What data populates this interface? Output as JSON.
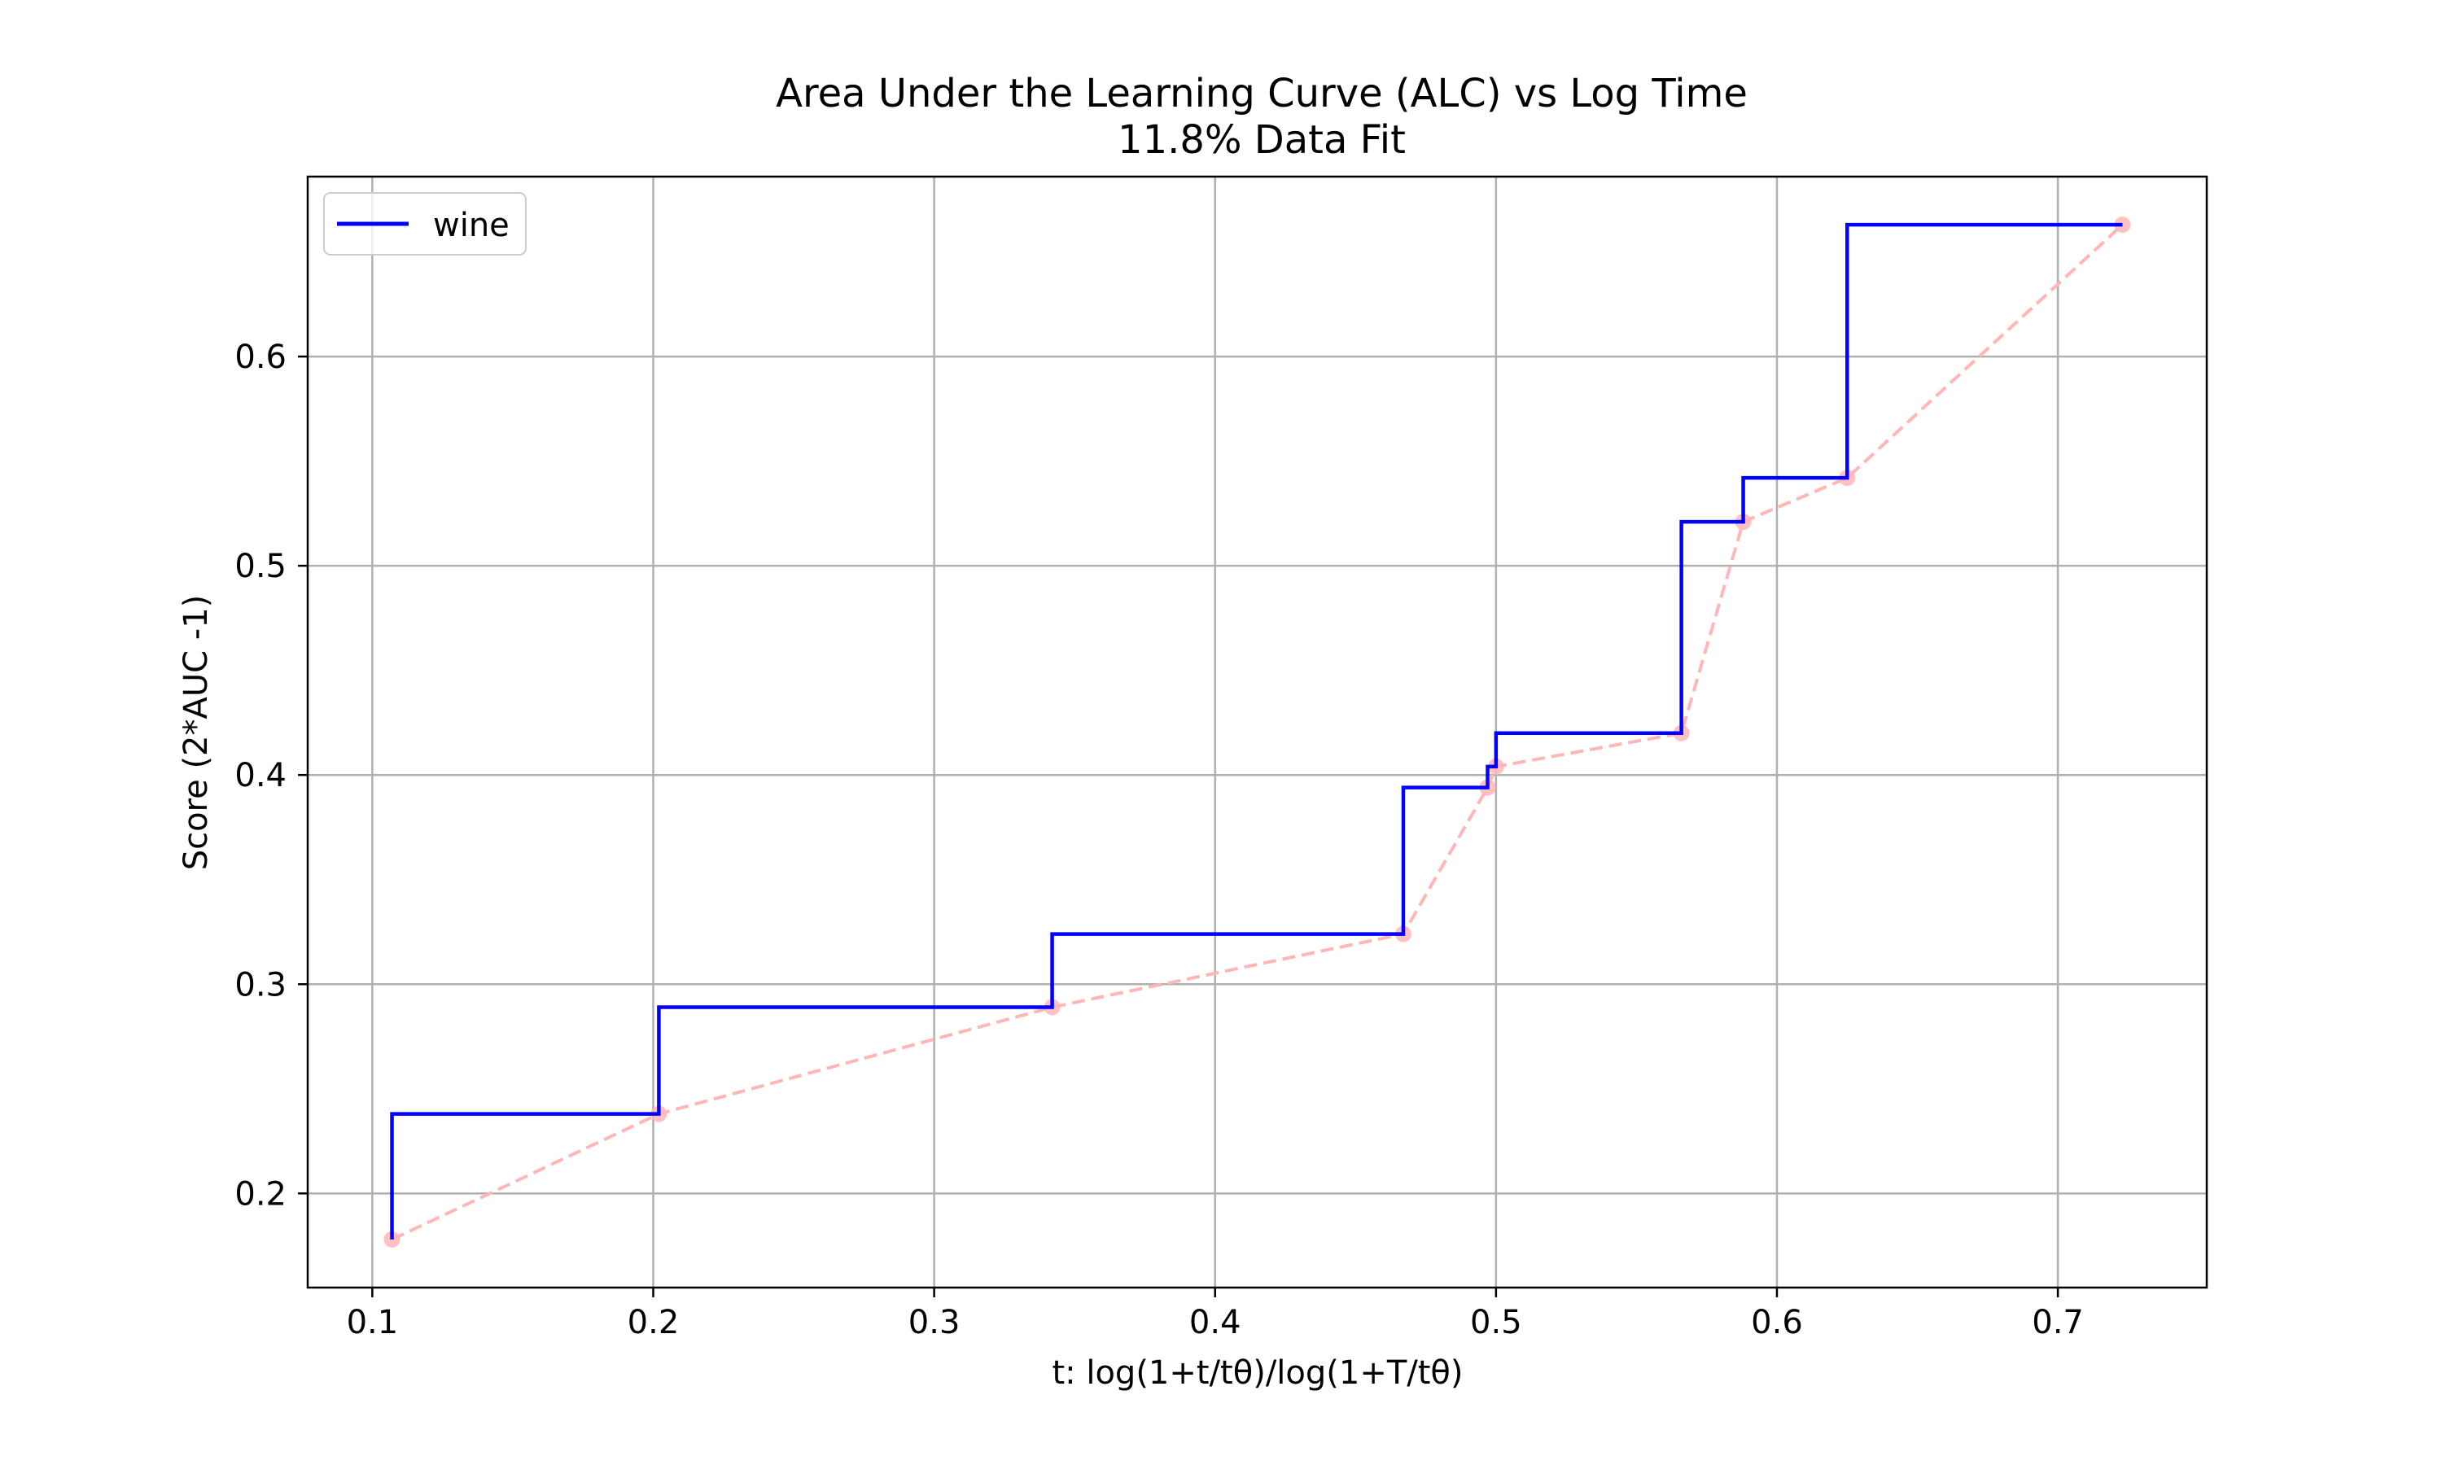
{
  "chart_data": {
    "type": "line",
    "title": "Area Under the Learning Curve (ALC) vs Log Time",
    "subtitle": "11.8% Data Fit",
    "xlabel": "t: log(1+t/tθ)/log(1+T/tθ)",
    "ylabel": "Score (2*AUC -1)",
    "xlim": [
      0.077,
      0.753
    ],
    "ylim": [
      0.155,
      0.686
    ],
    "xticks": [
      0.1,
      0.2,
      0.3,
      0.4,
      0.5,
      0.6,
      0.7
    ],
    "xtick_labels": [
      "0.1",
      "0.2",
      "0.3",
      "0.4",
      "0.5",
      "0.6",
      "0.7"
    ],
    "yticks": [
      0.2,
      0.3,
      0.4,
      0.5,
      0.6
    ],
    "ytick_labels": [
      "0.2",
      "0.3",
      "0.4",
      "0.5",
      "0.6"
    ],
    "grid": true,
    "legend_position": "top-left",
    "series": [
      {
        "name": "wine",
        "style": "step-post",
        "color": "#0000ff",
        "x": [
          0.107,
          0.202,
          0.342,
          0.467,
          0.497,
          0.5,
          0.566,
          0.588,
          0.625,
          0.723
        ],
        "y": [
          0.178,
          0.238,
          0.289,
          0.324,
          0.394,
          0.404,
          0.42,
          0.521,
          0.542,
          0.663
        ]
      },
      {
        "style": "dashed-markers",
        "color": "#ffb6b6",
        "x": [
          0.107,
          0.202,
          0.342,
          0.467,
          0.497,
          0.5,
          0.566,
          0.588,
          0.625,
          0.723
        ],
        "y": [
          0.178,
          0.238,
          0.289,
          0.324,
          0.394,
          0.404,
          0.42,
          0.521,
          0.542,
          0.663
        ]
      }
    ]
  }
}
